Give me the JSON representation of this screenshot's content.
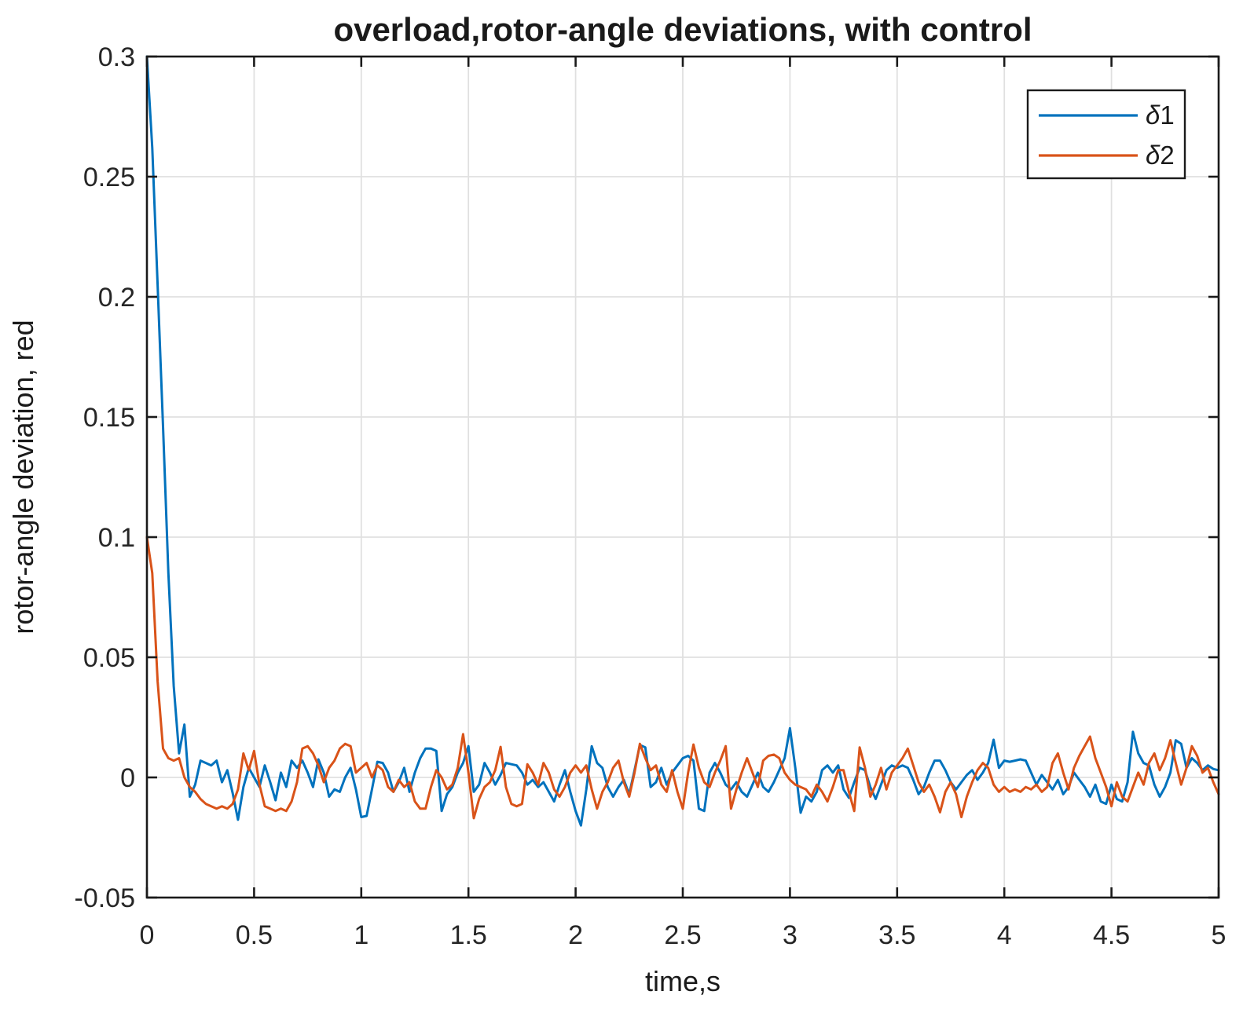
{
  "figure": {
    "title": "overload,rotor-angle deviations, with control",
    "xlabel": "time,s",
    "ylabel": "rotor-angle deviation, red",
    "background": "#ffffff"
  },
  "legend": {
    "position": "northeast",
    "entries": [
      {
        "label": "δ1",
        "color": "#0072BD"
      },
      {
        "label": "δ2",
        "color": "#D95319"
      }
    ]
  },
  "colors": {
    "series1": "#0072BD",
    "series2": "#D95319",
    "grid": "#E0E0E0",
    "axis": "#1a1a1a",
    "tick_label": "#262626",
    "background": "#ffffff"
  },
  "chart_data": {
    "type": "line",
    "title": "overload,rotor-angle deviations, with control",
    "xlabel": "time,s",
    "ylabel": "rotor-angle deviation, red",
    "xlim": [
      0,
      5
    ],
    "ylim": [
      -0.05,
      0.3
    ],
    "x_ticks": [
      0,
      0.5,
      1,
      1.5,
      2,
      2.5,
      3,
      3.5,
      4,
      4.5,
      5
    ],
    "x_tick_labels": [
      "0",
      "0.5",
      "1",
      "1.5",
      "2",
      "2.5",
      "3",
      "3.5",
      "4",
      "4.5",
      "5"
    ],
    "y_ticks": [
      -0.05,
      0,
      0.05,
      0.1,
      0.15,
      0.2,
      0.25,
      0.3
    ],
    "y_tick_labels": [
      "-0.05",
      "0",
      "0.05",
      "0.1",
      "0.15",
      "0.2",
      "0.25",
      "0.3"
    ],
    "grid": true,
    "legend_position": "northeast",
    "x_start": 0,
    "x_step": 0.025,
    "series": [
      {
        "name": "δ1",
        "color": "#0072BD",
        "values": [
          0.3,
          0.262,
          0.205,
          0.146,
          0.085,
          0.038,
          0.01,
          0.022,
          -0.008,
          -0.003,
          0.007,
          0.006,
          0.005,
          0.007,
          -0.002,
          0.003,
          -0.0065,
          -0.0176,
          -0.004,
          0.004,
          0.0,
          -0.004,
          0.005,
          -0.002,
          -0.0095,
          0.002,
          -0.004,
          0.007,
          0.004,
          0.007,
          0.002,
          -0.004,
          0.0075,
          0.002,
          -0.008,
          -0.005,
          -0.006,
          0.0,
          0.004,
          -0.005,
          -0.0165,
          -0.016,
          -0.005,
          0.0065,
          0.006,
          0.002,
          -0.006,
          -0.002,
          0.004,
          -0.006,
          0.002,
          0.008,
          0.012,
          0.012,
          0.011,
          -0.014,
          -0.007,
          -0.004,
          0.002,
          0.006,
          0.013,
          -0.006,
          -0.003,
          0.006,
          0.002,
          -0.003,
          0.001,
          0.006,
          0.0055,
          0.005,
          0.002,
          -0.003,
          -0.001,
          -0.004,
          -0.002,
          -0.006,
          -0.01,
          -0.003,
          0.003,
          -0.006,
          -0.014,
          -0.02,
          -0.005,
          0.013,
          0.006,
          0.004,
          -0.004,
          -0.008,
          -0.004,
          -0.001,
          -0.007,
          0.003,
          0.0135,
          0.0125,
          -0.004,
          -0.002,
          0.004,
          -0.003,
          0.002,
          0.005,
          0.008,
          0.009,
          0.007,
          -0.013,
          -0.014,
          0.002,
          0.006,
          0.002,
          -0.003,
          -0.005,
          -0.002,
          -0.006,
          -0.008,
          -0.003,
          0.002,
          -0.004,
          -0.006,
          -0.002,
          0.003,
          0.008,
          0.0205,
          0.004,
          -0.0147,
          -0.008,
          -0.01,
          -0.006,
          0.003,
          0.005,
          0.002,
          0.005,
          -0.005,
          -0.0085,
          -0.002,
          0.004,
          0.003,
          -0.004,
          -0.009,
          -0.003,
          0.003,
          0.005,
          0.004,
          0.005,
          0.004,
          -0.001,
          -0.007,
          -0.004,
          0.002,
          0.007,
          0.007,
          0.003,
          -0.002,
          -0.005,
          -0.002,
          0.001,
          0.003,
          -0.001,
          0.002,
          0.006,
          0.0157,
          0.004,
          0.007,
          0.0065,
          0.007,
          0.0075,
          0.007,
          0.002,
          -0.003,
          0.001,
          -0.002,
          -0.005,
          -0.001,
          -0.007,
          -0.004,
          0.002,
          -0.001,
          -0.004,
          -0.008,
          -0.003,
          -0.01,
          -0.011,
          -0.003,
          -0.009,
          -0.01,
          -0.002,
          0.019,
          0.01,
          0.006,
          0.005,
          -0.003,
          -0.008,
          -0.004,
          0.002,
          0.0155,
          0.014,
          0.004,
          0.008,
          0.006,
          0.003,
          0.005,
          0.0035,
          0.003
        ]
      },
      {
        "name": "δ2",
        "color": "#D95319",
        "values": [
          0.1,
          0.085,
          0.04,
          0.012,
          0.008,
          0.007,
          0.008,
          0.0,
          -0.004,
          -0.006,
          -0.009,
          -0.011,
          -0.012,
          -0.013,
          -0.012,
          -0.013,
          -0.011,
          -0.005,
          0.01,
          0.003,
          0.011,
          -0.003,
          -0.012,
          -0.013,
          -0.014,
          -0.013,
          -0.014,
          -0.01,
          -0.002,
          0.012,
          0.013,
          0.01,
          0.005,
          -0.002,
          0.004,
          0.007,
          0.012,
          0.014,
          0.013,
          0.002,
          0.004,
          0.006,
          0.0,
          0.005,
          0.003,
          -0.004,
          -0.006,
          -0.001,
          -0.004,
          -0.002,
          -0.01,
          -0.013,
          -0.013,
          -0.004,
          0.003,
          0.0,
          -0.005,
          -0.003,
          0.004,
          0.018,
          0.002,
          -0.017,
          -0.009,
          -0.004,
          -0.002,
          0.003,
          0.0127,
          -0.004,
          -0.011,
          -0.012,
          -0.011,
          0.0055,
          0.002,
          -0.003,
          0.006,
          0.002,
          -0.005,
          -0.008,
          -0.004,
          0.002,
          0.005,
          0.002,
          0.005,
          -0.005,
          -0.013,
          -0.006,
          -0.002,
          0.004,
          0.007,
          -0.002,
          -0.008,
          0.002,
          0.014,
          0.008,
          0.003,
          0.005,
          -0.003,
          -0.006,
          0.003,
          -0.006,
          -0.013,
          0.002,
          0.0137,
          0.004,
          -0.002,
          -0.004,
          0.002,
          0.007,
          0.013,
          -0.013,
          -0.005,
          0.002,
          0.008,
          0.002,
          -0.004,
          0.007,
          0.009,
          0.0095,
          0.008,
          0.002,
          -0.001,
          -0.003,
          -0.004,
          -0.005,
          -0.008,
          -0.003,
          -0.006,
          -0.01,
          -0.004,
          0.003,
          0.003,
          -0.006,
          -0.014,
          0.0125,
          0.004,
          -0.008,
          -0.003,
          0.004,
          -0.005,
          0.002,
          0.005,
          0.008,
          0.012,
          0.005,
          -0.002,
          -0.006,
          -0.003,
          -0.008,
          -0.0145,
          -0.006,
          -0.002,
          -0.007,
          -0.0165,
          -0.008,
          -0.002,
          0.003,
          0.006,
          0.004,
          -0.003,
          -0.006,
          -0.004,
          -0.006,
          -0.005,
          -0.006,
          -0.004,
          -0.005,
          -0.003,
          -0.006,
          -0.004,
          0.006,
          0.01,
          0.002,
          -0.005,
          0.004,
          0.009,
          0.013,
          0.017,
          0.008,
          0.002,
          -0.004,
          -0.012,
          -0.002,
          -0.008,
          -0.01,
          -0.004,
          0.002,
          -0.003,
          0.006,
          0.01,
          0.003,
          0.008,
          0.0155,
          0.006,
          -0.003,
          0.004,
          0.013,
          0.009,
          0.002,
          0.004,
          -0.002,
          -0.007
        ]
      }
    ]
  }
}
